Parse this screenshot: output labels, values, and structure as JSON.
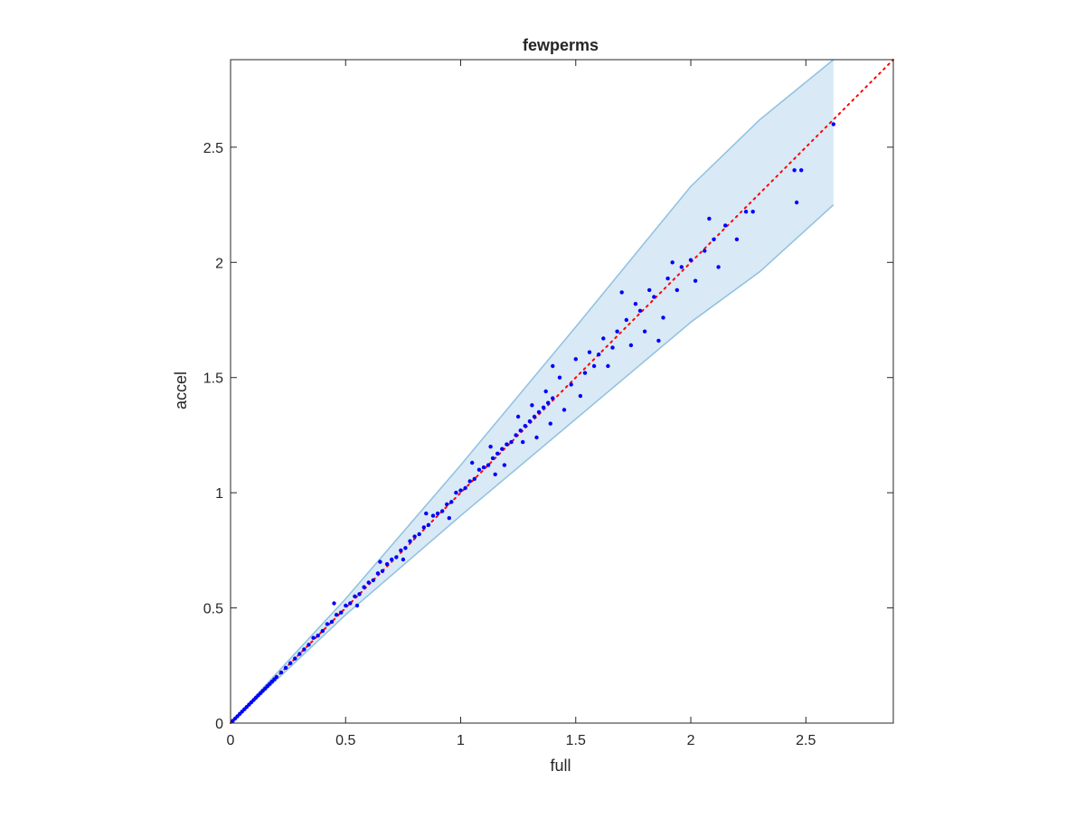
{
  "chart_data": {
    "type": "scatter",
    "title": "fewperms",
    "xlabel": "full",
    "ylabel": "accel",
    "xlim": [
      0,
      2.88
    ],
    "ylim": [
      0,
      2.88
    ],
    "xticks": [
      0,
      0.5,
      1,
      1.5,
      2,
      2.5
    ],
    "yticks": [
      0,
      0.5,
      1,
      1.5,
      2,
      2.5
    ],
    "xtick_labels": [
      "0",
      "0.5",
      "1",
      "1.5",
      "2",
      "2.5"
    ],
    "ytick_labels": [
      "0",
      "0.5",
      "1",
      "1.5",
      "2",
      "2.5"
    ],
    "grid": false,
    "legend": "none",
    "colors": {
      "points": "#0000ff",
      "reference_line": "#ff0000",
      "band_fill": "#d9e9f5",
      "band_edge": "#8fc1e0",
      "axes": "#262626"
    },
    "reference_line": {
      "style": "dotted",
      "from": [
        0,
        0
      ],
      "to": [
        2.88,
        2.88
      ]
    },
    "band": {
      "x": [
        0.0,
        0.5,
        1.0,
        1.5,
        2.0,
        2.3,
        2.62
      ],
      "upper": [
        0.0,
        0.54,
        1.12,
        1.72,
        2.33,
        2.62,
        2.88
      ],
      "lower": [
        0.0,
        0.47,
        0.9,
        1.32,
        1.74,
        1.96,
        2.25
      ]
    },
    "series": [
      {
        "values": [
          [
            0.01,
            0.01
          ],
          [
            0.02,
            0.02
          ],
          [
            0.03,
            0.03
          ],
          [
            0.04,
            0.04
          ],
          [
            0.05,
            0.05
          ],
          [
            0.06,
            0.06
          ],
          [
            0.07,
            0.07
          ],
          [
            0.08,
            0.08
          ],
          [
            0.09,
            0.09
          ],
          [
            0.1,
            0.1
          ],
          [
            0.11,
            0.11
          ],
          [
            0.12,
            0.12
          ],
          [
            0.13,
            0.13
          ],
          [
            0.14,
            0.14
          ],
          [
            0.15,
            0.15
          ],
          [
            0.16,
            0.16
          ],
          [
            0.17,
            0.17
          ],
          [
            0.18,
            0.18
          ],
          [
            0.19,
            0.19
          ],
          [
            0.2,
            0.2
          ],
          [
            0.22,
            0.22
          ],
          [
            0.24,
            0.24
          ],
          [
            0.26,
            0.26
          ],
          [
            0.28,
            0.28
          ],
          [
            0.3,
            0.3
          ],
          [
            0.32,
            0.32
          ],
          [
            0.34,
            0.34
          ],
          [
            0.36,
            0.37
          ],
          [
            0.38,
            0.38
          ],
          [
            0.4,
            0.4
          ],
          [
            0.42,
            0.43
          ],
          [
            0.44,
            0.44
          ],
          [
            0.46,
            0.47
          ],
          [
            0.48,
            0.48
          ],
          [
            0.5,
            0.51
          ],
          [
            0.52,
            0.52
          ],
          [
            0.54,
            0.55
          ],
          [
            0.56,
            0.56
          ],
          [
            0.58,
            0.59
          ],
          [
            0.6,
            0.61
          ],
          [
            0.62,
            0.62
          ],
          [
            0.64,
            0.65
          ],
          [
            0.66,
            0.66
          ],
          [
            0.68,
            0.69
          ],
          [
            0.7,
            0.71
          ],
          [
            0.72,
            0.72
          ],
          [
            0.74,
            0.75
          ],
          [
            0.76,
            0.76
          ],
          [
            0.78,
            0.79
          ],
          [
            0.8,
            0.81
          ],
          [
            0.82,
            0.82
          ],
          [
            0.84,
            0.85
          ],
          [
            0.86,
            0.86
          ],
          [
            0.88,
            0.9
          ],
          [
            0.9,
            0.91
          ],
          [
            0.92,
            0.92
          ],
          [
            0.94,
            0.95
          ],
          [
            0.96,
            0.96
          ],
          [
            0.98,
            1.0
          ],
          [
            1.0,
            1.01
          ],
          [
            1.02,
            1.02
          ],
          [
            1.04,
            1.05
          ],
          [
            1.06,
            1.06
          ],
          [
            1.08,
            1.1
          ],
          [
            1.1,
            1.11
          ],
          [
            1.12,
            1.12
          ],
          [
            1.14,
            1.15
          ],
          [
            1.16,
            1.17
          ],
          [
            1.18,
            1.19
          ],
          [
            1.2,
            1.21
          ],
          [
            1.22,
            1.22
          ],
          [
            1.24,
            1.25
          ],
          [
            1.26,
            1.27
          ],
          [
            1.28,
            1.29
          ],
          [
            1.3,
            1.31
          ],
          [
            1.32,
            1.33
          ],
          [
            1.34,
            1.35
          ],
          [
            1.36,
            1.37
          ],
          [
            1.38,
            1.39
          ],
          [
            1.4,
            1.41
          ],
          [
            0.45,
            0.52
          ],
          [
            0.55,
            0.51
          ],
          [
            0.65,
            0.7
          ],
          [
            0.75,
            0.71
          ],
          [
            0.85,
            0.91
          ],
          [
            0.95,
            0.89
          ],
          [
            1.05,
            1.13
          ],
          [
            1.15,
            1.08
          ],
          [
            1.13,
            1.2
          ],
          [
            1.19,
            1.12
          ],
          [
            1.25,
            1.33
          ],
          [
            1.27,
            1.22
          ],
          [
            1.31,
            1.38
          ],
          [
            1.33,
            1.24
          ],
          [
            1.37,
            1.44
          ],
          [
            1.39,
            1.3
          ],
          [
            1.4,
            1.55
          ],
          [
            1.43,
            1.5
          ],
          [
            1.45,
            1.36
          ],
          [
            1.48,
            1.47
          ],
          [
            1.5,
            1.58
          ],
          [
            1.52,
            1.42
          ],
          [
            1.54,
            1.52
          ],
          [
            1.56,
            1.61
          ],
          [
            1.58,
            1.55
          ],
          [
            1.6,
            1.6
          ],
          [
            1.62,
            1.67
          ],
          [
            1.64,
            1.55
          ],
          [
            1.66,
            1.63
          ],
          [
            1.68,
            1.7
          ],
          [
            1.7,
            1.87
          ],
          [
            1.72,
            1.75
          ],
          [
            1.74,
            1.64
          ],
          [
            1.76,
            1.82
          ],
          [
            1.78,
            1.79
          ],
          [
            1.8,
            1.7
          ],
          [
            1.82,
            1.88
          ],
          [
            1.84,
            1.85
          ],
          [
            1.86,
            1.66
          ],
          [
            1.88,
            1.76
          ],
          [
            1.9,
            1.93
          ],
          [
            1.92,
            2.0
          ],
          [
            1.94,
            1.88
          ],
          [
            1.96,
            1.98
          ],
          [
            2.0,
            2.01
          ],
          [
            2.02,
            1.92
          ],
          [
            2.06,
            2.05
          ],
          [
            2.08,
            2.19
          ],
          [
            2.1,
            2.1
          ],
          [
            2.12,
            1.98
          ],
          [
            2.15,
            2.16
          ],
          [
            2.2,
            2.1
          ],
          [
            2.24,
            2.22
          ],
          [
            2.27,
            2.22
          ],
          [
            2.45,
            2.4
          ],
          [
            2.46,
            2.26
          ],
          [
            2.48,
            2.4
          ],
          [
            2.62,
            2.6
          ]
        ]
      }
    ]
  }
}
